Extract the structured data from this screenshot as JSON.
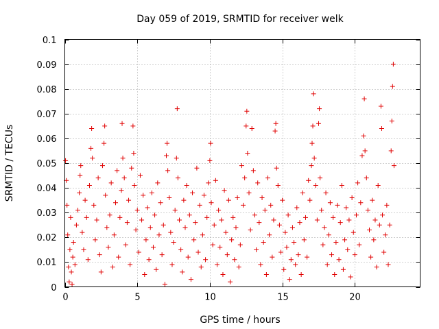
{
  "chart_data": {
    "type": "scatter",
    "title": "Day 059 of 2019, SRMTID for receiver welk",
    "xlabel": "GPS time / hours",
    "ylabel": "SRMTID / TECUs",
    "xlim": [
      0,
      24.5
    ],
    "ylim": [
      0,
      0.1
    ],
    "x_ticks": [
      0,
      5,
      10,
      15,
      20
    ],
    "x_tick_labels": [
      "0",
      "5",
      "10",
      "15",
      "20"
    ],
    "y_ticks": [
      0,
      0.01,
      0.02,
      0.03,
      0.04,
      0.05,
      0.06,
      0.07,
      0.08,
      0.09,
      0.1
    ],
    "y_tick_labels": [
      "0",
      "0.01",
      "0.02",
      "0.03",
      "0.04",
      "0.05",
      "0.06",
      "0.07",
      "0.08",
      "0.09",
      "0.1"
    ],
    "grid": true,
    "marker": "plus",
    "color": "#e00000",
    "series": [
      {
        "points": [
          [
            0.05,
            0.051
          ],
          [
            0.1,
            0.043
          ],
          [
            0.15,
            0.033
          ],
          [
            0.2,
            0.021
          ],
          [
            0.25,
            0.008
          ],
          [
            0.3,
            0.002
          ],
          [
            0.35,
            0.015
          ],
          [
            0.4,
            0.028
          ],
          [
            0.45,
            0.006
          ],
          [
            0.5,
            0.001
          ],
          [
            0.55,
            0.012
          ],
          [
            0.6,
            0.018
          ],
          [
            0.7,
            0.009
          ],
          [
            0.8,
            0.025
          ],
          [
            0.9,
            0.031
          ],
          [
            1.0,
            0.038
          ],
          [
            1.05,
            0.045
          ],
          [
            1.1,
            0.049
          ],
          [
            1.2,
            0.022
          ],
          [
            1.3,
            0.015
          ],
          [
            1.4,
            0.035
          ],
          [
            1.5,
            0.028
          ],
          [
            1.6,
            0.011
          ],
          [
            1.7,
            0.041
          ],
          [
            1.8,
            0.056
          ],
          [
            1.85,
            0.064
          ],
          [
            1.9,
            0.052
          ],
          [
            2.0,
            0.033
          ],
          [
            2.1,
            0.019
          ],
          [
            2.2,
            0.027
          ],
          [
            2.3,
            0.044
          ],
          [
            2.4,
            0.013
          ],
          [
            2.5,
            0.006
          ],
          [
            2.6,
            0.049
          ],
          [
            2.7,
            0.058
          ],
          [
            2.75,
            0.065
          ],
          [
            2.8,
            0.037
          ],
          [
            2.9,
            0.024
          ],
          [
            3.0,
            0.016
          ],
          [
            3.1,
            0.029
          ],
          [
            3.2,
            0.042
          ],
          [
            3.3,
            0.008
          ],
          [
            3.4,
            0.021
          ],
          [
            3.5,
            0.034
          ],
          [
            3.6,
            0.047
          ],
          [
            3.7,
            0.012
          ],
          [
            3.8,
            0.028
          ],
          [
            3.9,
            0.039
          ],
          [
            3.95,
            0.066
          ],
          [
            4.0,
            0.052
          ],
          [
            4.1,
            0.044
          ],
          [
            4.2,
            0.017
          ],
          [
            4.3,
            0.026
          ],
          [
            4.4,
            0.035
          ],
          [
            4.5,
            0.009
          ],
          [
            4.6,
            0.048
          ],
          [
            4.7,
            0.065
          ],
          [
            4.75,
            0.054
          ],
          [
            4.8,
            0.041
          ],
          [
            4.9,
            0.023
          ],
          [
            5.0,
            0.031
          ],
          [
            5.1,
            0.014
          ],
          [
            5.2,
            0.045
          ],
          [
            5.3,
            0.027
          ],
          [
            5.4,
            0.037
          ],
          [
            5.5,
            0.005
          ],
          [
            5.6,
            0.019
          ],
          [
            5.7,
            0.032
          ],
          [
            5.8,
            0.011
          ],
          [
            5.9,
            0.024
          ],
          [
            6.0,
            0.038
          ],
          [
            6.1,
            0.016
          ],
          [
            6.2,
            0.029
          ],
          [
            6.3,
            0.007
          ],
          [
            6.4,
            0.042
          ],
          [
            6.5,
            0.021
          ],
          [
            6.6,
            0.034
          ],
          [
            6.7,
            0.013
          ],
          [
            6.8,
            0.025
          ],
          [
            6.9,
            0.001
          ],
          [
            7.0,
            0.053
          ],
          [
            7.05,
            0.058
          ],
          [
            7.1,
            0.047
          ],
          [
            7.2,
            0.036
          ],
          [
            7.3,
            0.022
          ],
          [
            7.4,
            0.009
          ],
          [
            7.5,
            0.018
          ],
          [
            7.6,
            0.031
          ],
          [
            7.7,
            0.052
          ],
          [
            7.75,
            0.072
          ],
          [
            7.8,
            0.044
          ],
          [
            7.9,
            0.027
          ],
          [
            8.0,
            0.015
          ],
          [
            8.1,
            0.006
          ],
          [
            8.2,
            0.035
          ],
          [
            8.3,
            0.024
          ],
          [
            8.4,
            0.041
          ],
          [
            8.5,
            0.012
          ],
          [
            8.6,
            0.029
          ],
          [
            8.7,
            0.003
          ],
          [
            8.8,
            0.038
          ],
          [
            8.9,
            0.019
          ],
          [
            9.0,
            0.026
          ],
          [
            9.1,
            0.048
          ],
          [
            9.2,
            0.014
          ],
          [
            9.3,
            0.033
          ],
          [
            9.4,
            0.008
          ],
          [
            9.5,
            0.021
          ],
          [
            9.6,
            0.037
          ],
          [
            9.7,
            0.011
          ],
          [
            9.8,
            0.028
          ],
          [
            9.9,
            0.042
          ],
          [
            10.0,
            0.051
          ],
          [
            10.05,
            0.058
          ],
          [
            10.1,
            0.034
          ],
          [
            10.2,
            0.017
          ],
          [
            10.3,
            0.025
          ],
          [
            10.4,
            0.043
          ],
          [
            10.5,
            0.009
          ],
          [
            10.6,
            0.031
          ],
          [
            10.7,
            0.016
          ],
          [
            10.8,
            0.027
          ],
          [
            10.9,
            0.005
          ],
          [
            11.0,
            0.039
          ],
          [
            11.1,
            0.022
          ],
          [
            11.2,
            0.013
          ],
          [
            11.3,
            0.035
          ],
          [
            11.4,
            0.002
          ],
          [
            11.5,
            0.019
          ],
          [
            11.6,
            0.028
          ],
          [
            11.7,
            0.011
          ],
          [
            11.8,
            0.024
          ],
          [
            11.9,
            0.036
          ],
          [
            12.0,
            0.008
          ],
          [
            12.1,
            0.017
          ],
          [
            12.2,
            0.049
          ],
          [
            12.3,
            0.033
          ],
          [
            12.4,
            0.044
          ],
          [
            12.5,
            0.065
          ],
          [
            12.55,
            0.071
          ],
          [
            12.6,
            0.054
          ],
          [
            12.7,
            0.038
          ],
          [
            12.8,
            0.023
          ],
          [
            12.9,
            0.064
          ],
          [
            13.0,
            0.047
          ],
          [
            13.1,
            0.029
          ],
          [
            13.2,
            0.015
          ],
          [
            13.3,
            0.042
          ],
          [
            13.4,
            0.026
          ],
          [
            13.5,
            0.009
          ],
          [
            13.6,
            0.036
          ],
          [
            13.7,
            0.018
          ],
          [
            13.8,
            0.031
          ],
          [
            13.9,
            0.005
          ],
          [
            14.0,
            0.044
          ],
          [
            14.1,
            0.021
          ],
          [
            14.2,
            0.033
          ],
          [
            14.3,
            0.012
          ],
          [
            14.4,
            0.027
          ],
          [
            14.5,
            0.063
          ],
          [
            14.55,
            0.066
          ],
          [
            14.6,
            0.048
          ],
          [
            14.7,
            0.041
          ],
          [
            14.8,
            0.025
          ],
          [
            14.9,
            0.014
          ],
          [
            15.0,
            0.035
          ],
          [
            15.1,
            0.007
          ],
          [
            15.2,
            0.022
          ],
          [
            15.3,
            0.016
          ],
          [
            15.4,
            0.029
          ],
          [
            15.5,
            0.003
          ],
          [
            15.6,
            0.011
          ],
          [
            15.7,
            0.024
          ],
          [
            15.8,
            0.018
          ],
          [
            15.9,
            0.009
          ],
          [
            16.0,
            0.032
          ],
          [
            16.1,
            0.013
          ],
          [
            16.2,
            0.026
          ],
          [
            16.3,
            0.005
          ],
          [
            16.4,
            0.038
          ],
          [
            16.5,
            0.019
          ],
          [
            16.6,
            0.028
          ],
          [
            16.7,
            0.012
          ],
          [
            16.8,
            0.043
          ],
          [
            16.9,
            0.035
          ],
          [
            17.0,
            0.049
          ],
          [
            17.05,
            0.058
          ],
          [
            17.1,
            0.065
          ],
          [
            17.15,
            0.078
          ],
          [
            17.2,
            0.052
          ],
          [
            17.3,
            0.041
          ],
          [
            17.4,
            0.027
          ],
          [
            17.5,
            0.066
          ],
          [
            17.55,
            0.072
          ],
          [
            17.6,
            0.044
          ],
          [
            17.7,
            0.031
          ],
          [
            17.8,
            0.017
          ],
          [
            17.9,
            0.024
          ],
          [
            18.0,
            0.038
          ],
          [
            18.1,
            0.009
          ],
          [
            18.2,
            0.021
          ],
          [
            18.3,
            0.034
          ],
          [
            18.4,
            0.013
          ],
          [
            18.5,
            0.028
          ],
          [
            18.6,
            0.005
          ],
          [
            18.7,
            0.018
          ],
          [
            18.8,
            0.033
          ],
          [
            18.9,
            0.011
          ],
          [
            19.0,
            0.026
          ],
          [
            19.1,
            0.041
          ],
          [
            19.2,
            0.007
          ],
          [
            19.3,
            0.019
          ],
          [
            19.4,
            0.032
          ],
          [
            19.5,
            0.015
          ],
          [
            19.6,
            0.027
          ],
          [
            19.7,
            0.004
          ],
          [
            19.8,
            0.036
          ],
          [
            19.9,
            0.022
          ],
          [
            20.0,
            0.013
          ],
          [
            20.1,
            0.029
          ],
          [
            20.2,
            0.042
          ],
          [
            20.3,
            0.017
          ],
          [
            20.4,
            0.034
          ],
          [
            20.5,
            0.053
          ],
          [
            20.6,
            0.061
          ],
          [
            20.65,
            0.076
          ],
          [
            20.7,
            0.055
          ],
          [
            20.8,
            0.044
          ],
          [
            20.9,
            0.031
          ],
          [
            21.0,
            0.023
          ],
          [
            21.1,
            0.012
          ],
          [
            21.2,
            0.035
          ],
          [
            21.3,
            0.019
          ],
          [
            21.4,
            0.027
          ],
          [
            21.5,
            0.008
          ],
          [
            21.6,
            0.041
          ],
          [
            21.7,
            0.025
          ],
          [
            21.8,
            0.073
          ],
          [
            21.85,
            0.064
          ],
          [
            21.9,
            0.029
          ],
          [
            22.0,
            0.014
          ],
          [
            22.1,
            0.021
          ],
          [
            22.2,
            0.033
          ],
          [
            22.3,
            0.009
          ],
          [
            22.4,
            0.025
          ],
          [
            22.5,
            0.055
          ],
          [
            22.55,
            0.067
          ],
          [
            22.6,
            0.081
          ],
          [
            22.65,
            0.09
          ],
          [
            22.7,
            0.049
          ]
        ]
      }
    ]
  }
}
